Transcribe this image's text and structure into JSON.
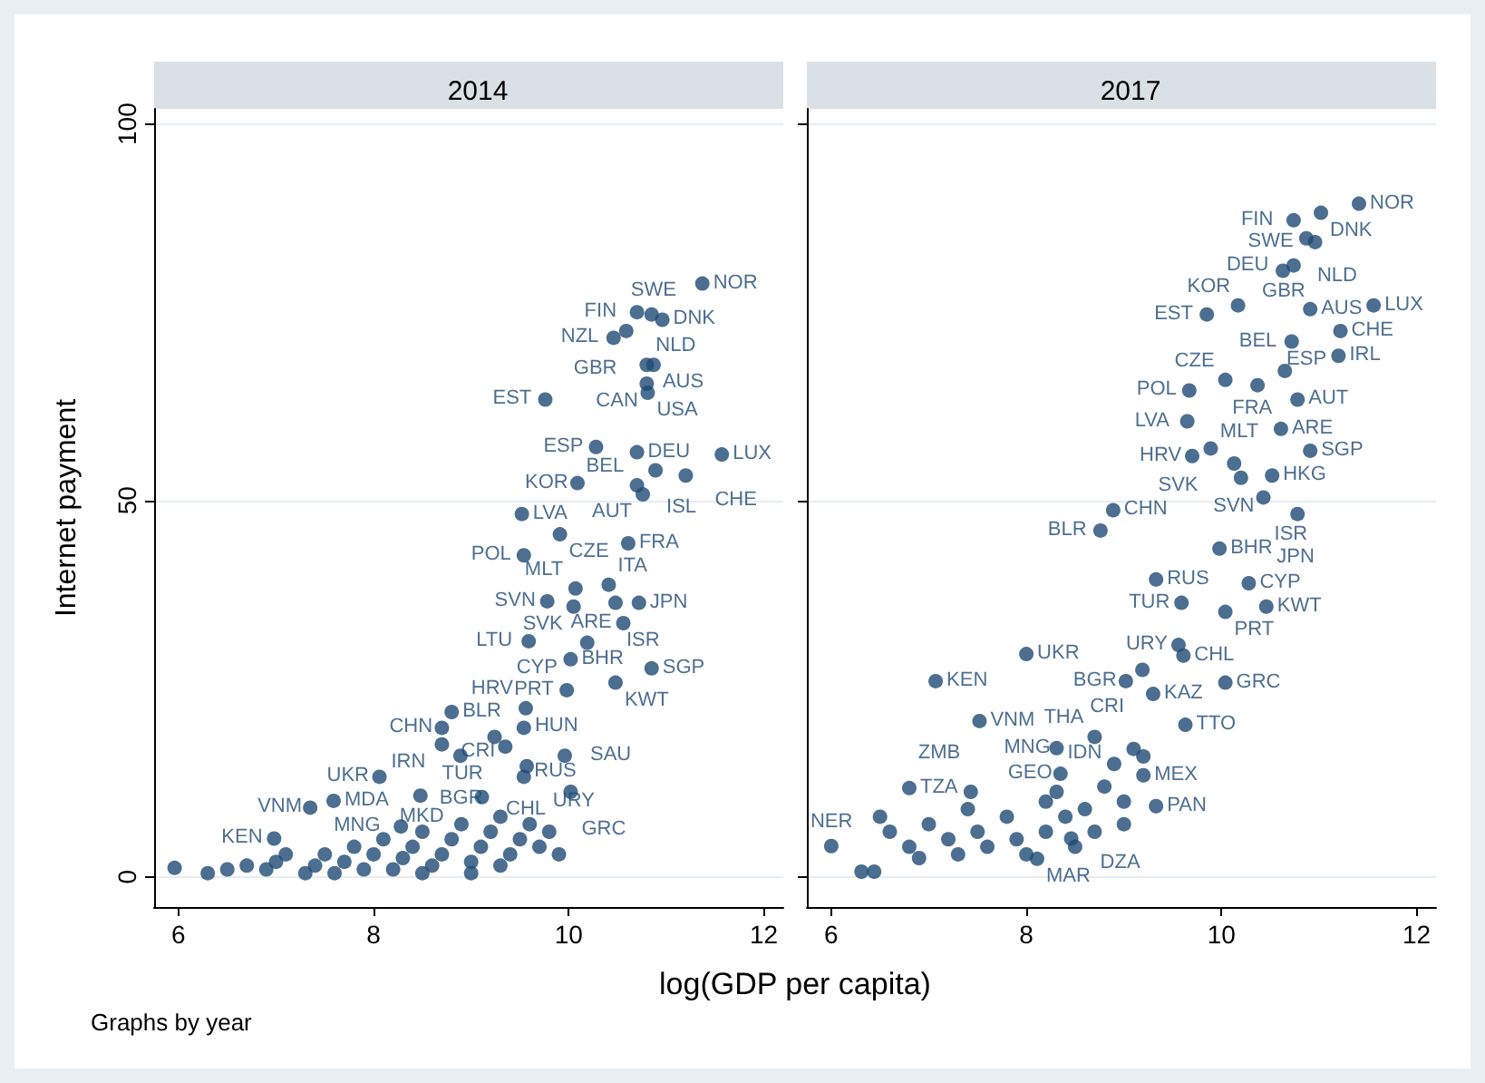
{
  "chart_data": [
    {
      "type": "scatter",
      "title": "2014",
      "xlabel": "log(GDP per capita)",
      "ylabel": "Internet payment",
      "annotations": [
        "Graphs by year"
      ],
      "xlim": [
        5.75,
        12.2
      ],
      "ylim": [
        -4,
        102
      ],
      "xticks": [
        6,
        8,
        10,
        12
      ],
      "yticks": [
        0,
        50,
        100
      ],
      "grid": "y",
      "marker": "circle",
      "series": [
        {
          "color": "#1f4a74",
          "x": [
            11.37,
            10.7,
            10.85,
            10.96,
            10.59,
            10.46,
            10.8,
            10.87,
            10.8,
            10.81,
            9.76,
            10.28,
            10.7,
            11.57,
            10.89,
            11.2,
            10.09,
            10.7,
            10.76,
            9.52,
            9.91,
            10.61,
            9.54,
            10.41,
            10.07,
            9.78,
            10.05,
            10.72,
            10.48,
            10.56,
            9.59,
            10.19,
            10.02,
            10.85,
            10.48,
            9.98,
            9.56,
            8.8,
            8.7,
            8.7,
            9.54,
            9.35,
            9.24,
            8.89,
            9.96,
            9.57,
            9.54,
            10.02,
            8.06,
            7.59,
            7.35,
            8.48,
            9.11,
            6.98,
            8.28,
            5.96,
            6.3,
            6.5,
            6.7,
            6.9,
            7.0,
            7.1,
            7.3,
            7.4,
            7.5,
            7.6,
            7.7,
            7.8,
            7.9,
            8.0,
            8.1,
            8.2,
            8.3,
            8.4,
            8.5,
            8.6,
            8.7,
            8.8,
            8.9,
            9.0,
            9.1,
            9.2,
            9.3,
            9.4,
            9.5,
            9.6,
            9.7,
            9.8,
            9.9,
            8.5,
            9.0,
            9.3
          ],
          "values": [
            78.8,
            75,
            74.7,
            74,
            72.5,
            71.6,
            68,
            68,
            65.5,
            64.3,
            63.4,
            57.1,
            56.4,
            56.1,
            54,
            53.3,
            52.3,
            52,
            50.8,
            48.2,
            45.5,
            44.3,
            42.7,
            38.8,
            38.3,
            36.6,
            35.9,
            36.4,
            36.4,
            33.7,
            31.3,
            31.1,
            28.9,
            27.7,
            25.8,
            24.8,
            22.4,
            21.9,
            19.8,
            17.6,
            19.8,
            17.3,
            18.6,
            16.1,
            16.1,
            14.7,
            13.3,
            11.3,
            13.3,
            10.1,
            9.2,
            10.8,
            10.6,
            5.1,
            6.7,
            1.2,
            0.5,
            1,
            1.5,
            1,
            2,
            3,
            0.5,
            1.5,
            3,
            0.5,
            2,
            4,
            1,
            3,
            5,
            1,
            2.5,
            4,
            6,
            1.5,
            3,
            5,
            7,
            2,
            4,
            6,
            8,
            3,
            5,
            7,
            4,
            6,
            3,
            0.5,
            0.5,
            1.5
          ],
          "value_labels": [
            "NOR",
            "FIN",
            "SWE",
            "DNK",
            "GBR",
            "NZL",
            "NLD",
            "AUS",
            "CAN",
            "USA",
            "EST",
            "ESP",
            "DEU",
            "LUX",
            "ISL",
            "CHE",
            "KOR",
            "BEL",
            "AUT",
            "LVA",
            "CZE",
            "FRA",
            "POL",
            "ITA",
            "MLT",
            "SVN",
            "SVK",
            "JPN",
            "ISR",
            "ARE",
            "LTU",
            "CYP",
            "BHR",
            "SGP",
            "KWT",
            "PRT",
            "HUN",
            "BLR",
            "CHN",
            "IRN",
            "HRV",
            "RUS",
            "TUR",
            "BGR",
            "SAU",
            "CHL",
            "URY",
            "GRC",
            "UKR",
            "MDA",
            "VNM",
            "MKD",
            "CRI",
            "KEN",
            "MNG",
            null,
            null,
            null,
            null,
            null,
            null,
            null,
            null,
            null,
            null,
            null,
            null,
            null,
            null,
            null,
            null,
            null,
            null,
            null,
            null,
            null,
            null,
            null,
            null,
            null,
            null,
            null,
            null,
            null,
            null,
            null,
            null,
            null,
            null,
            null,
            null,
            null
          ]
        }
      ]
    },
    {
      "type": "scatter",
      "title": "2017",
      "xlim": [
        5.75,
        12.2
      ],
      "ylim": [
        -4,
        102
      ],
      "xticks": [
        6,
        8,
        10,
        12
      ],
      "yticks": [
        0,
        50,
        100
      ],
      "grid": "y",
      "marker": "circle",
      "tick_labels": "x",
      "series": [
        {
          "color": "#1f4a74",
          "x": [
            11.41,
            11.02,
            10.74,
            10.87,
            10.96,
            10.74,
            10.63,
            11.56,
            10.91,
            10.17,
            9.85,
            11.22,
            10.72,
            11.2,
            10.65,
            10.04,
            10.37,
            10.78,
            9.67,
            9.65,
            10.61,
            9.89,
            10.91,
            9.7,
            10.13,
            10.2,
            10.52,
            10.43,
            10.78,
            8.89,
            8.76,
            9.98,
            9.33,
            10.28,
            9.59,
            10.04,
            10.46,
            9.56,
            9.61,
            8.0,
            9.19,
            9.02,
            9.3,
            10.04,
            7.07,
            7.52,
            9.63,
            8.7,
            8.31,
            9.2,
            8.35,
            8.31,
            9.33,
            6.8,
            7.43,
            6.0,
            8.11,
            8.46,
            6.31,
            6.44,
            6.5,
            6.6,
            6.8,
            7.0,
            7.2,
            7.3,
            7.5,
            7.6,
            7.8,
            7.9,
            8.0,
            8.2,
            8.4,
            8.5,
            8.6,
            8.7,
            8.8,
            8.9,
            9.0,
            9.1,
            9.2,
            9.0,
            6.9,
            7.4,
            8.2
          ],
          "values": [
            89.4,
            88.2,
            87.2,
            84.8,
            84.3,
            81.2,
            80.5,
            75.9,
            75.4,
            75.9,
            74.7,
            72.5,
            71.1,
            69.2,
            67.2,
            66,
            65.3,
            63.4,
            64.6,
            60.5,
            59.5,
            56.9,
            56.6,
            55.9,
            54.9,
            53,
            53.3,
            50.4,
            48.2,
            48.7,
            46,
            43.6,
            39.5,
            39,
            36.4,
            35.2,
            35.9,
            30.8,
            29.4,
            29.6,
            27.5,
            26,
            24.3,
            25.8,
            26,
            20.7,
            20.2,
            18.6,
            17.1,
            13.5,
            13.7,
            11.3,
            9.4,
            11.8,
            11.3,
            4.1,
            2.4,
            5.1,
            0.7,
            0.7,
            8,
            6,
            4,
            7,
            5,
            3,
            6,
            4,
            8,
            5,
            3,
            6,
            8,
            4,
            9,
            6,
            12,
            15,
            10,
            17,
            16,
            7,
            2.5,
            9,
            10
          ],
          "value_labels": [
            "NOR",
            "DNK",
            "FIN",
            "NLD",
            "SWE",
            "DEU",
            "GBR",
            "LUX",
            "AUS",
            "KOR",
            "EST",
            "CHE",
            "BEL",
            "IRL",
            "FRA",
            "CZE",
            "ESP",
            "AUT",
            "POL",
            "LVA",
            "ARE",
            "SVK",
            "SGP",
            "HRV",
            "SVN",
            "MLT",
            "HKG",
            "ISR",
            "JPN",
            "CHN",
            "BLR",
            "BHR",
            "RUS",
            "CYP",
            "TUR",
            "PRT",
            "KWT",
            "URY",
            "CHL",
            "UKR",
            "CRI",
            "BGR",
            "KAZ",
            "GRC",
            "KEN",
            "VNM",
            "TTO",
            "THA",
            "MNG",
            "MEX",
            "GEO",
            "IDN",
            "PAN",
            "TZA",
            "ZMB",
            "NER",
            "MAR",
            "DZA",
            null,
            null,
            null,
            null,
            null,
            null,
            null,
            null,
            null,
            null,
            null,
            null,
            null,
            null,
            null,
            null,
            null,
            null,
            null,
            null,
            null,
            null,
            null,
            null,
            null,
            null,
            null
          ]
        }
      ]
    }
  ]
}
